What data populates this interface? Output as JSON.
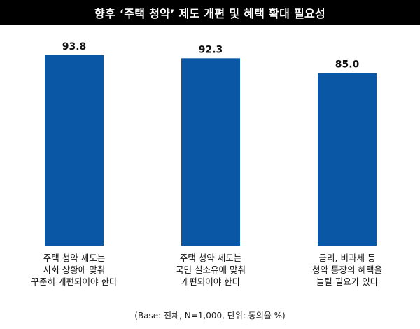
{
  "header": {
    "title": "향후 ‘주택 청약’ 제도 개편 및 혜택 확대 필요성"
  },
  "footnote": "(Base: 전체, N=1,000, 단위: 동의율 %)",
  "colors": {
    "bar": "#0a57a6",
    "title_bg": "#000000",
    "title_text": "#ffffff"
  },
  "chart_data": {
    "type": "bar",
    "title": "향후 ‘주택 청약’ 제도 개편 및 혜택 확대 필요성",
    "categories": [
      [
        "주택 청약 제도는",
        "사회 상황에 맞춰",
        "꾸준히 개편되어야 한다"
      ],
      [
        "주택 청약 제도는",
        "국민 실소유에 맞춰",
        "개편되어야 한다"
      ],
      [
        "금리, 비과세 등",
        "청약 통장의 혜택을",
        "늘릴 필요가 있다"
      ]
    ],
    "values": [
      93.8,
      92.3,
      85.0
    ],
    "value_labels": [
      "93.8",
      "92.3",
      "85.0"
    ],
    "ylim": [
      0,
      100
    ],
    "grid": false,
    "legend": "none"
  }
}
